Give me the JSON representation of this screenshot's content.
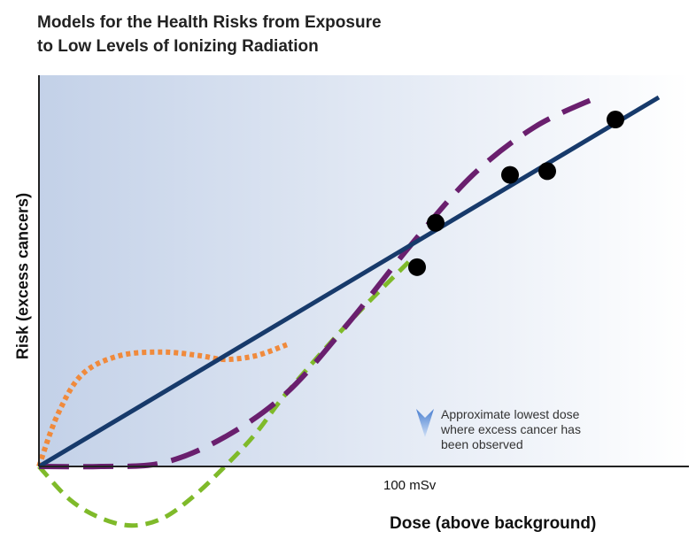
{
  "chart_data": {
    "type": "line",
    "title_lines": [
      "Models for the Health Risks from Exposure",
      "to Low Levels of Ionizing Radiation"
    ],
    "xlabel": "Dose (above background)",
    "ylabel": "Risk (excess cancers)",
    "xlim": [
      0,
      1
    ],
    "ylim": [
      -0.17,
      1
    ],
    "x_tick_labels": [
      {
        "x": 0.6,
        "label": "100 mSv"
      }
    ],
    "annotation": {
      "lines": [
        "Approximate lowest dose",
        "where excess cancer has",
        "been observed"
      ],
      "x": 0.6
    },
    "background_gradient": {
      "from": "#c3d1e8",
      "to": "#ffffff"
    },
    "series": [
      {
        "style": "solid",
        "color": "#173a6b",
        "points": [
          [
            0,
            0
          ],
          [
            1,
            1
          ]
        ]
      },
      {
        "style": "long-dash",
        "color": "#6a1f6e",
        "points": [
          [
            0,
            0
          ],
          [
            0.1,
            0
          ],
          [
            0.2,
            0.01
          ],
          [
            0.3,
            0.08
          ],
          [
            0.4,
            0.2
          ],
          [
            0.5,
            0.39
          ],
          [
            0.6,
            0.6
          ],
          [
            0.7,
            0.79
          ],
          [
            0.8,
            0.92
          ],
          [
            0.9,
            1.0
          ]
        ]
      },
      {
        "style": "dash",
        "color": "#7fba2a",
        "points": [
          [
            0,
            0
          ],
          [
            0.05,
            -0.09
          ],
          [
            0.1,
            -0.14
          ],
          [
            0.15,
            -0.16
          ],
          [
            0.2,
            -0.14
          ],
          [
            0.25,
            -0.08
          ],
          [
            0.3,
            0.0
          ],
          [
            0.35,
            0.09
          ],
          [
            0.4,
            0.2
          ],
          [
            0.5,
            0.39
          ],
          [
            0.6,
            0.56
          ]
        ]
      },
      {
        "style": "dot",
        "color": "#f08a3c",
        "points": [
          [
            0,
            0
          ],
          [
            0.03,
            0.14
          ],
          [
            0.07,
            0.25
          ],
          [
            0.13,
            0.3
          ],
          [
            0.2,
            0.31
          ],
          [
            0.26,
            0.3
          ],
          [
            0.3,
            0.29
          ],
          [
            0.35,
            0.3
          ],
          [
            0.4,
            0.33
          ]
        ]
      }
    ],
    "data_points": [
      {
        "x": 0.61,
        "y": 0.54
      },
      {
        "x": 0.64,
        "y": 0.66
      },
      {
        "x": 0.76,
        "y": 0.79
      },
      {
        "x": 0.82,
        "y": 0.8
      },
      {
        "x": 0.93,
        "y": 0.94
      }
    ]
  }
}
